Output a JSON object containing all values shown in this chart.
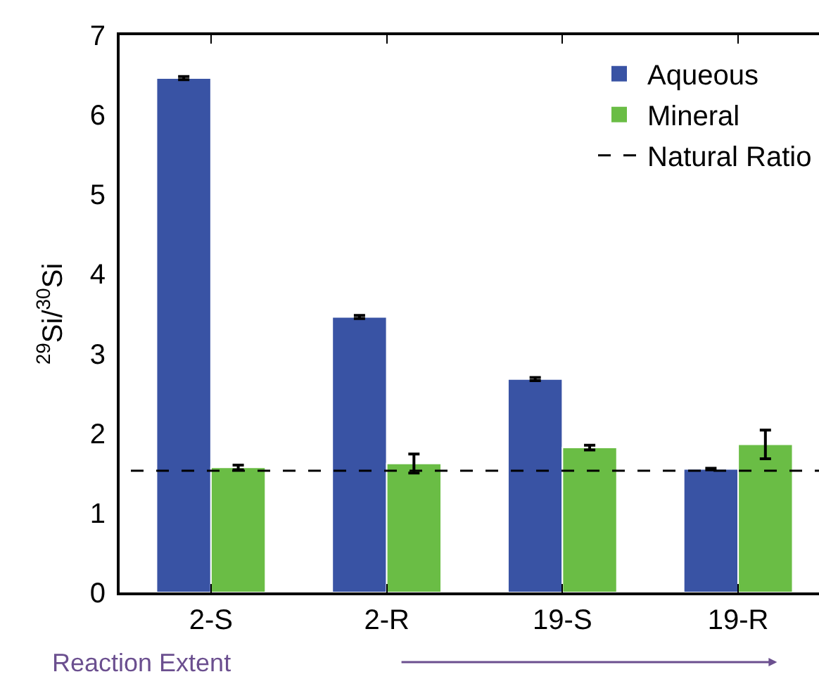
{
  "chart_data": {
    "type": "bar",
    "ylabel": "$^{29}$Si/$^{30}$Si",
    "xlabel": "Reaction Extent",
    "categories": [
      "2-S",
      "2-R",
      "19-S",
      "19-R"
    ],
    "series": [
      {
        "name": "Aqueous",
        "color": "#3953a4",
        "values": [
          6.46,
          3.46,
          2.68,
          1.55
        ],
        "errors": [
          0.02,
          0.02,
          0.02,
          0.01
        ]
      },
      {
        "name": "Mineral",
        "color": "#6abd45",
        "values": [
          1.57,
          1.62,
          1.82,
          1.86
        ],
        "errors": [
          0.03,
          0.12,
          0.03,
          0.18
        ]
      }
    ],
    "ref_lines": [
      {
        "axis": "y",
        "value": 1.53,
        "label": "Natural Ratio",
        "color": "#000000",
        "line_style": "dashed"
      }
    ],
    "ylim": [
      0,
      7
    ],
    "yticks": [
      0,
      1,
      2,
      3,
      4,
      5,
      6,
      7
    ],
    "grid": false,
    "legend": "top right"
  }
}
